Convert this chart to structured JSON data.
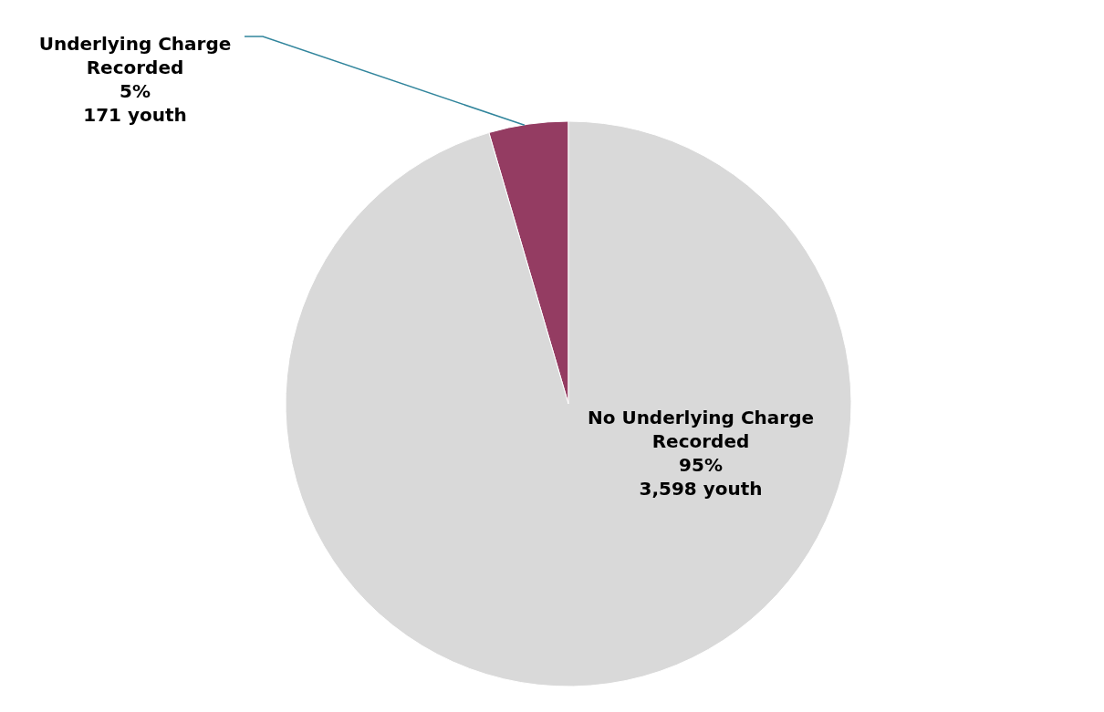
{
  "chart_data": {
    "type": "pie",
    "categories": [
      "Underlying Charge Recorded",
      "No Underlying Charge Recorded"
    ],
    "values": [
      171,
      3598
    ],
    "colors": [
      "#943c62",
      "#d9d9d9"
    ],
    "value_labels": [
      "5%\n171 youth",
      "95%\n3,598 youth"
    ],
    "legend": false
  }
}
